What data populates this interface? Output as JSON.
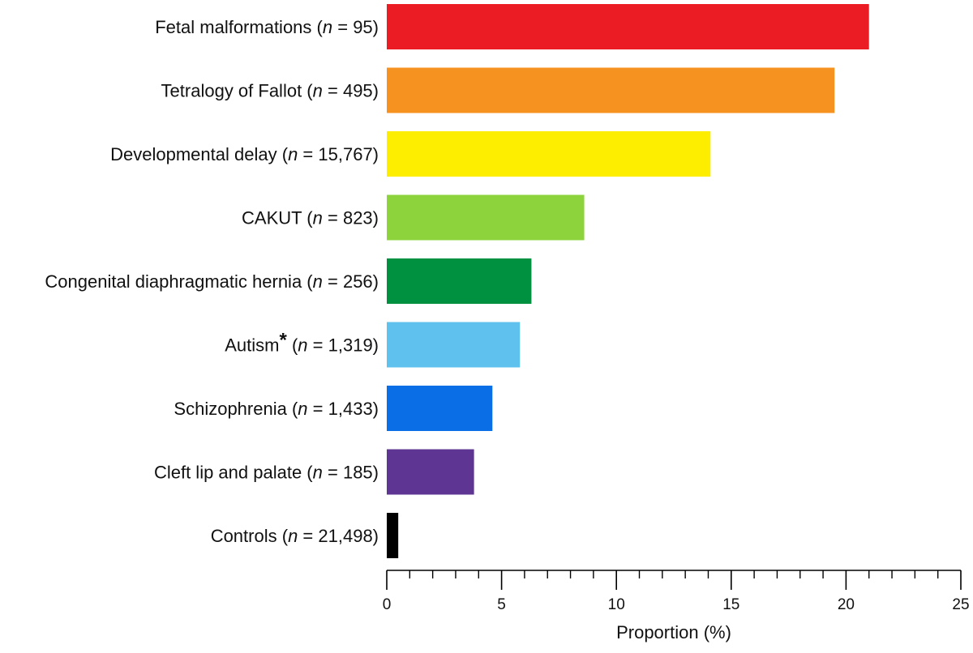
{
  "chart_data": {
    "type": "bar",
    "orientation": "horizontal",
    "categories": [
      {
        "name": "Fetal malformations",
        "n": "95",
        "asterisk": false,
        "value": 21.0,
        "color": "#ec1c24"
      },
      {
        "name": "Tetralogy of Fallot",
        "n": "495",
        "asterisk": false,
        "value": 19.5,
        "color": "#f59220"
      },
      {
        "name": "Developmental delay",
        "n": "15,767",
        "asterisk": false,
        "value": 14.1,
        "color": "#fdee00"
      },
      {
        "name": "CAKUT",
        "n": "823",
        "asterisk": false,
        "value": 8.6,
        "color": "#8dd43c"
      },
      {
        "name": "Congenital diaphragmatic hernia",
        "n": "256",
        "asterisk": false,
        "value": 6.3,
        "color": "#009140"
      },
      {
        "name": "Autism",
        "n": "1,319",
        "asterisk": true,
        "value": 5.8,
        "color": "#5fc2ee"
      },
      {
        "name": "Schizophrenia",
        "n": "1,433",
        "asterisk": false,
        "value": 4.6,
        "color": "#0a6fe6"
      },
      {
        "name": "Cleft lip and palate",
        "n": "185",
        "asterisk": false,
        "value": 3.8,
        "color": "#5e3593"
      },
      {
        "name": "Controls",
        "n": "21,498",
        "asterisk": false,
        "value": 0.5,
        "color": "#000000"
      }
    ],
    "xlabel": "Proportion (%)",
    "xlim": [
      0,
      25
    ],
    "major_ticks": [
      0,
      5,
      10,
      15,
      20,
      25
    ],
    "minor_tick_step": 1,
    "grid": false,
    "legend": "none"
  },
  "labels": {
    "n_symbol": "n",
    "equals": " = ",
    "asterisk": "*"
  }
}
